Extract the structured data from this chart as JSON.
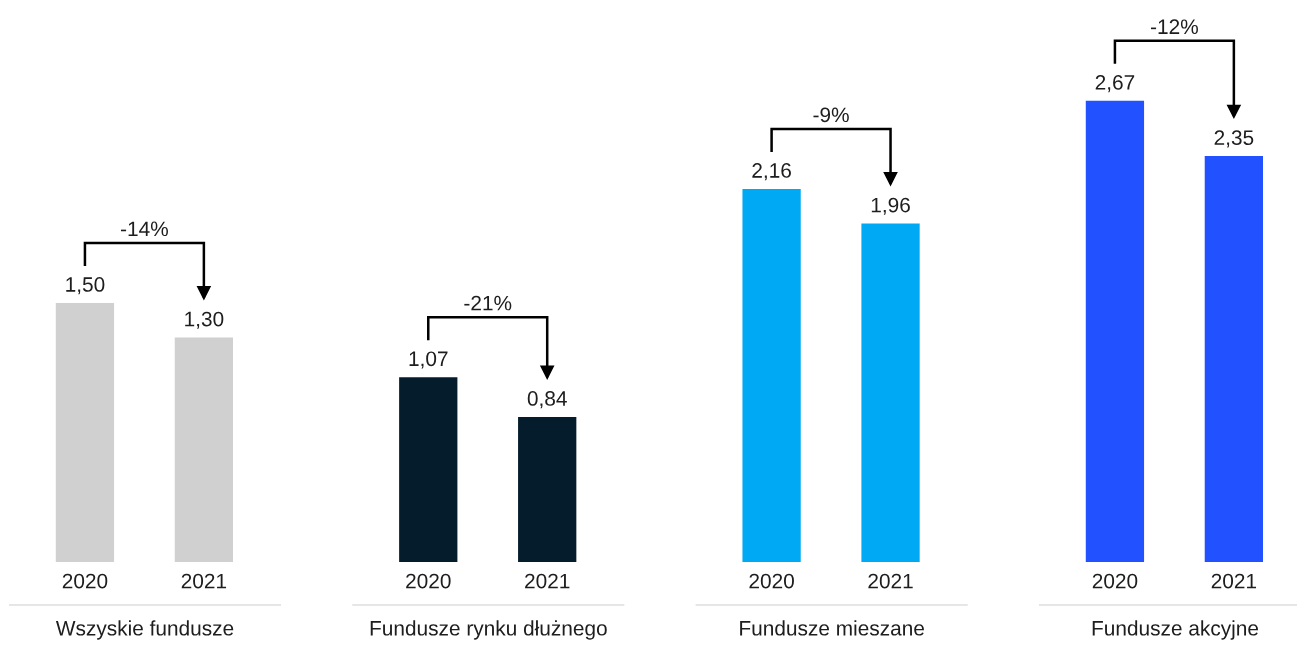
{
  "chart_data": [
    {
      "type": "bar",
      "categories": [
        "2020",
        "2021"
      ],
      "values": [
        1.5,
        1.3
      ],
      "color": "#d0d0d0",
      "value_labels": [
        "1,50",
        "1,30"
      ],
      "xlabel": "Wszyskie fundusze",
      "annotations": [
        "-14%"
      ],
      "tick_labels": "x"
    },
    {
      "type": "bar",
      "categories": [
        "2020",
        "2021"
      ],
      "values": [
        1.07,
        0.84
      ],
      "color": "#051c2c",
      "value_labels": [
        "1,07",
        "0,84"
      ],
      "xlabel": "Fundusze rynku dłużnego",
      "annotations": [
        "-21%"
      ],
      "tick_labels": "x"
    },
    {
      "type": "bar",
      "categories": [
        "2020",
        "2021"
      ],
      "values": [
        2.16,
        1.96
      ],
      "color": "#00a9f4",
      "value_labels": [
        "2,16",
        "1,96"
      ],
      "xlabel": "Fundusze mieszane",
      "annotations": [
        "-9%"
      ],
      "tick_labels": "x"
    },
    {
      "type": "bar",
      "categories": [
        "2020",
        "2021"
      ],
      "values": [
        2.67,
        2.35
      ],
      "color": "#2251ff",
      "value_labels": [
        "2,67",
        "2,35"
      ],
      "xlabel": "Fundusze akcyjne",
      "annotations": [
        "-12%"
      ],
      "tick_labels": "x"
    }
  ]
}
